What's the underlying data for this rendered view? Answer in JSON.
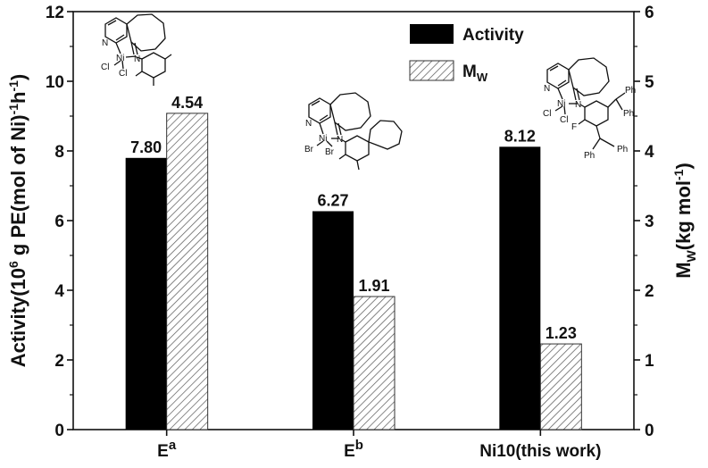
{
  "chart_data": {
    "type": "bar",
    "categories": [
      "E",
      "E",
      "Ni10(this work)"
    ],
    "category_superscripts": [
      "a",
      "b",
      ""
    ],
    "series": [
      {
        "name": "Activity",
        "axis": "left",
        "fill": "solid",
        "color": "#000000",
        "values": [
          7.8,
          6.27,
          8.12
        ]
      },
      {
        "name": "M",
        "name_subscript": "W",
        "axis": "right",
        "fill": "hatched",
        "color": "#ffffff",
        "values": [
          4.54,
          1.91,
          1.23
        ]
      }
    ],
    "value_labels": [
      [
        "7.80",
        "6.27",
        "8.12"
      ],
      [
        "4.54",
        "1.91",
        "1.23"
      ]
    ],
    "ylim": [
      0,
      12
    ],
    "y2lim": [
      0,
      6
    ],
    "yticks": [
      "0",
      "2",
      "4",
      "6",
      "8",
      "10",
      "12"
    ],
    "y2ticks": [
      "0",
      "1",
      "2",
      "3",
      "4",
      "5",
      "6"
    ],
    "ylabel": {
      "a": "Activity(10",
      "sup1": "6",
      "b": " g PE(mol of Ni)",
      "sup2": "-1",
      "c": "h",
      "sup3": "-1",
      "d": ")"
    },
    "y2label": {
      "a": "M",
      "sub": "W",
      "b": "(kg mol",
      "sup": "-1",
      "c": ")"
    },
    "legend_position": "top-center",
    "grid": false
  },
  "structures": {
    "s1": {
      "ni": "Ni",
      "n1": "N",
      "n2": "N",
      "cl1": "Cl",
      "cl2": "Cl"
    },
    "s2": {
      "ni": "Ni",
      "n1": "N",
      "n2": "N",
      "br1": "Br",
      "br2": "Br"
    },
    "s3": {
      "ni": "Ni",
      "n1": "N",
      "n2": "N",
      "cl1": "Cl",
      "cl2": "Cl",
      "f": "F",
      "ph1": "Ph",
      "ph2": "Ph",
      "ph3": "Ph",
      "ph4": "Ph"
    }
  }
}
